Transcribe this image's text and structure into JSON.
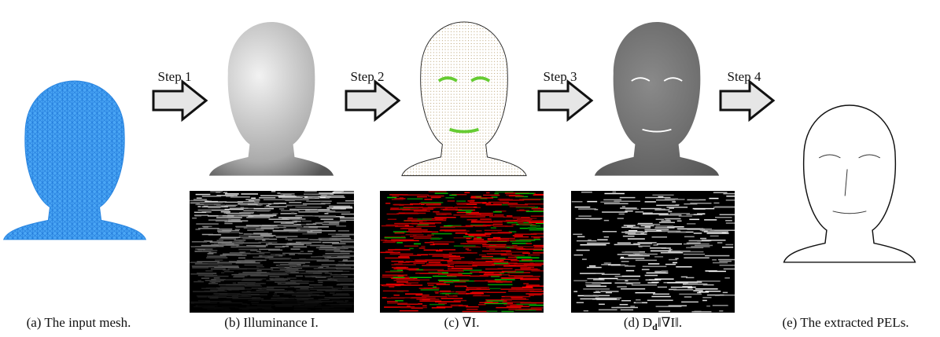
{
  "steps": [
    "Step 1",
    "Step 2",
    "Step 3",
    "Step 4"
  ],
  "captions": [
    {
      "text": "(a) The input mesh."
    },
    {
      "text": "(b) Illuminance I."
    },
    {
      "text": "(c) ∇I."
    },
    {
      "parts": [
        "(d) D",
        "d",
        "‖∇I‖."
      ]
    },
    {
      "text": "(e) The extracted PELs."
    }
  ]
}
